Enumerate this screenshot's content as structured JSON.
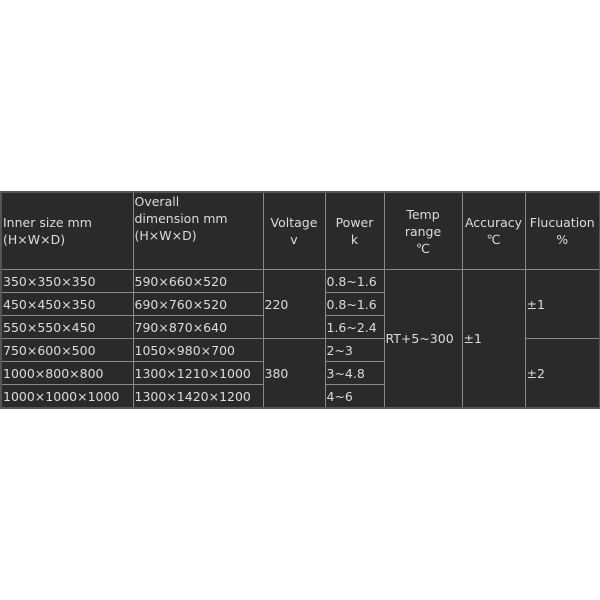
{
  "headers": {
    "inner": [
      "Inner size mm",
      "(H×W×D)"
    ],
    "overall": [
      "Overall",
      "dimension mm",
      "(H×W×D)"
    ],
    "voltage": [
      "Voltage",
      "v"
    ],
    "power": [
      "Power",
      "k"
    ],
    "temp": [
      "Temp",
      "range",
      "℃"
    ],
    "accuracy": [
      "Accuracy",
      "℃"
    ],
    "fluctuation": [
      "Flucuation",
      "%"
    ]
  },
  "rows": [
    {
      "inner": "350×350×350",
      "overall": "590×660×520",
      "power": "0.8~1.6"
    },
    {
      "inner": "450×450×350",
      "overall": "690×760×520",
      "power": "0.8~1.6"
    },
    {
      "inner": "550×550×450",
      "overall": "790×870×640",
      "power": "1.6~2.4"
    },
    {
      "inner": "750×600×500",
      "overall": "1050×980×700",
      "power": "2~3"
    },
    {
      "inner": "1000×800×800",
      "overall": "1300×1210×1000",
      "power": "3~4.8"
    },
    {
      "inner": "1000×1000×1000",
      "overall": "1300×1420×1200",
      "power": "4~6"
    }
  ],
  "voltage_groups": [
    "220",
    "380"
  ],
  "temp_range": "RT+5~300",
  "accuracy": "±1",
  "fluctuation_groups": [
    "±1",
    "±2"
  ]
}
